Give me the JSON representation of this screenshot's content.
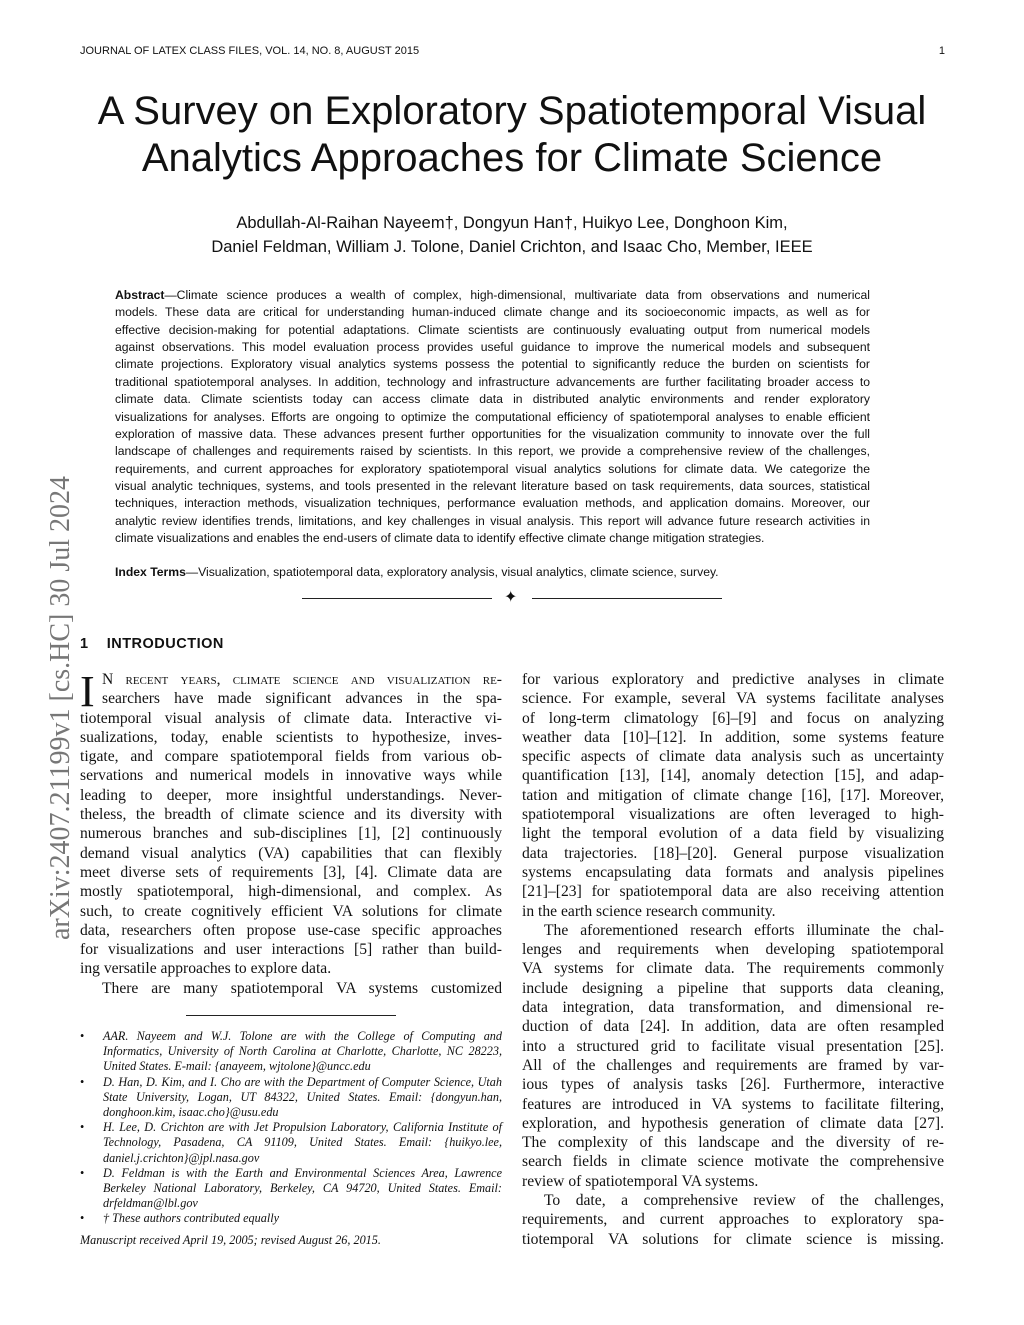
{
  "header": {
    "journal": "JOURNAL OF LATEX CLASS FILES, VOL. 14, NO. 8, AUGUST 2015",
    "page": "1"
  },
  "title": [
    "A Survey on Exploratory Spatiotemporal Visual",
    "Analytics Approaches for Climate Science"
  ],
  "authors": [
    "Abdullah-Al-Raihan Nayeem†, Dongyun Han†, Huikyo Lee, Donghoon Kim,",
    "Daniel Feldman, William J. Tolone, Daniel Crichton, and Isaac Cho, Member, IEEE"
  ],
  "arxiv_id": "arXiv:2407.21199v1  [cs.HC]  30 Jul 2024",
  "abstract": {
    "label": "Abstract",
    "lines": [
      "—Climate science produces a wealth of complex, high-dimensional, multivariate data from observations and numerical",
      "models. These data are critical for understanding human-induced climate change and its socioeconomic impacts, as well as for",
      "effective decision-making for potential adaptations. Climate scientists are continuously evaluating output from numerical models",
      "against observations. This model evaluation process provides useful guidance to improve the numerical models and subsequent",
      "climate projections. Exploratory visual analytics systems possess the potential to significantly reduce the burden on scientists for",
      "traditional spatiotemporal analyses. In addition, technology and infrastructure advancements are further facilitating broader access to",
      "climate data. Climate scientists today can access climate data in distributed analytic environments and render exploratory",
      "visualizations for analyses. Efforts are ongoing to optimize the computational efficiency of spatiotemporal analyses to enable efficient",
      "exploration of massive data. These advances present further opportunities for the visualization community to innovate over the full",
      "landscape of challenges and requirements raised by scientists. In this report, we provide a comprehensive review of the challenges,",
      "requirements, and current approaches for exploratory spatiotemporal visual analytics solutions for climate data. We categorize the",
      "visual analytic techniques, systems, and tools presented in the relevant literature based on task requirements, data sources, statistical",
      "techniques, interaction methods, visualization techniques, performance evaluation methods, and application domains. Moreover, our",
      "analytic review identifies trends, limitations, and key challenges in visual analysis. This report will advance future research activities in",
      "climate visualizations and enables the end-users of climate data to identify effective climate change mitigation strategies."
    ]
  },
  "index_terms": {
    "label": "Index Terms",
    "text": "—Visualization, spatiotemporal data, exploratory analysis, visual analytics, climate science, survey."
  },
  "section": {
    "number": "1",
    "title": "INTRODUCTION"
  },
  "left_column": {
    "dropcap": "I",
    "paragraphs": [
      [
        "N recent years, climate science and visualization re-",
        "searchers have made significant advances in the spa-",
        "tiotemporal visual analysis of climate data. Interactive vi-",
        "sualizations, today, enable scientists to hypothesize, inves-",
        "tigate, and compare spatiotemporal fields from various ob-",
        "servations and numerical models in innovative ways while",
        "leading to deeper, more insightful understandings. Never-",
        "theless, the breadth of climate science and its diversity with",
        "numerous branches and sub-disciplines [1], [2] continuously",
        "demand visual analytics (VA) capabilities that can flexibly",
        "meet diverse sets of requirements [3], [4]. Climate data are",
        "mostly spatiotemporal, high-dimensional, and complex. As",
        "such, to create cognitively efficient VA solutions for climate",
        "data, researchers often propose use-case specific approaches",
        "for visualizations and user interactions [5] rather than build-",
        "ing versatile approaches to explore data."
      ],
      [
        "There are many spatiotemporal VA systems customized"
      ]
    ]
  },
  "right_column": {
    "paragraphs": [
      [
        "for various exploratory and predictive analyses in climate",
        "science. For example, several VA systems facilitate analyses",
        "of long-term climatology [6]–[9] and focus on analyzing",
        "weather data [10]–[12]. In addition, some systems feature",
        "specific aspects of climate data analysis such as uncertainty",
        "quantification [13], [14], anomaly detection [15], and adap-",
        "tation and mitigation of climate change [16], [17]. Moreover,",
        "spatiotemporal visualizations are often leveraged to high-",
        "light the temporal evolution of a data field by visualizing",
        "data trajectories. [18]–[20]. General purpose visualization",
        "systems encapsulating data formats and analysis pipelines",
        "[21]–[23] for spatiotemporal data are also receiving attention",
        "in the earth science research community."
      ],
      [
        "The aforementioned research efforts illuminate the chal-",
        "lenges and requirements when developing spatiotemporal",
        "VA systems for climate data. The requirements commonly",
        "include designing a pipeline that supports data cleaning,",
        "data integration, data transformation, and dimensional re-",
        "duction of data [24]. In addition, data are often resampled",
        "into a structured grid to facilitate visual presentation [25].",
        "All of the challenges and requirements are framed by var-",
        "ious types of analysis tasks [26]. Furthermore, interactive",
        "features are introduced in VA systems to facilitate filtering,",
        "exploration, and hypothesis generation of climate data [27].",
        "The complexity of this landscape and the diversity of re-",
        "search fields in climate science motivate the comprehensive",
        "review of spatiotemporal VA systems."
      ],
      [
        "To date, a comprehensive review of the challenges,",
        "requirements, and current approaches to exploratory spa-",
        "tiotemporal VA solutions for climate science is missing."
      ]
    ]
  },
  "footnotes": [
    "AAR. Nayeem and W.J. Tolone are with the College of Computing and Informatics, University of North Carolina at Charlotte, Charlotte, NC 28223, United States. E-mail: {anayeem, wjtolone}@uncc.edu",
    "D. Han, D. Kim, and I. Cho are with the Department of Computer Science, Utah State University, Logan, UT 84322, United States. Email: {dongyun.han, donghoon.kim, isaac.cho}@usu.edu",
    "H. Lee, D. Crichton are with Jet Propulsion Laboratory, California Institute of Technology, Pasadena, CA 91109, United States. Email: {huikyo.lee, daniel.j.crichton}@jpl.nasa.gov",
    "D. Feldman is with the Earth and Environmental Sciences Area, Lawrence Berkeley National Laboratory, Berkeley, CA 94720, United States. Email: drfeldman@lbl.gov",
    "† These authors contributed equally"
  ],
  "manuscript": "Manuscript received April 19, 2005; revised August 26, 2015."
}
